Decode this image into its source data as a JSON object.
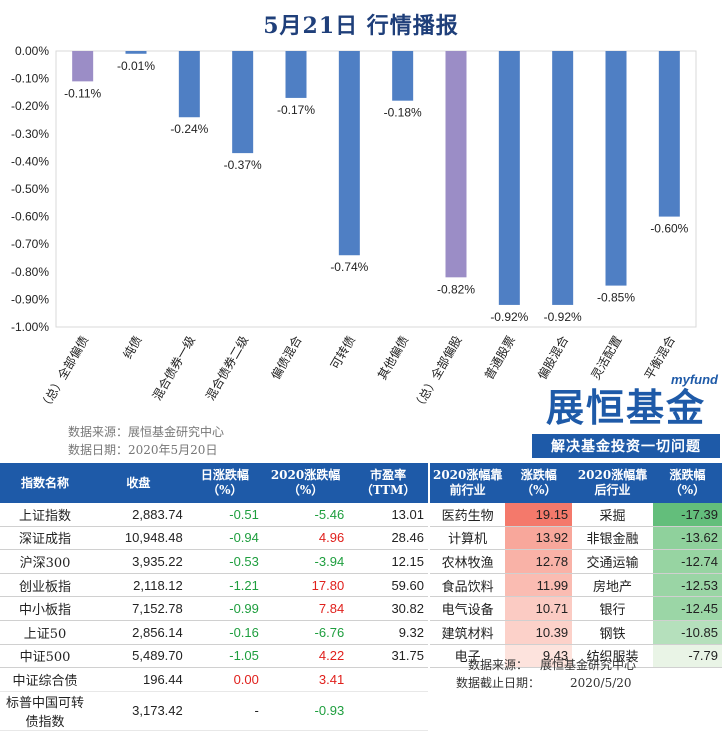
{
  "title": "5月21日  行情播报",
  "chart_data": {
    "type": "bar",
    "categories": [
      "（总）全部偏债",
      "纯债",
      "混合债券一级",
      "混合债券二级",
      "偏债混合",
      "可转债",
      "其他偏债",
      "（总）全部偏股",
      "普通股票",
      "偏股混合",
      "灵活配置",
      "平衡混合"
    ],
    "values": [
      -0.11,
      -0.01,
      -0.24,
      -0.37,
      -0.17,
      -0.74,
      -0.18,
      -0.82,
      -0.92,
      -0.92,
      -0.85,
      -0.6
    ],
    "value_labels": [
      "-0.11%",
      "-0.01%",
      "-0.24%",
      "-0.37%",
      "-0.17%",
      "-0.74%",
      "-0.18%",
      "-0.82%",
      "-0.92%",
      "-0.92%",
      "-0.85%",
      "-0.60%"
    ],
    "highlight": [
      0,
      7
    ],
    "yticks": [
      "0.00%",
      "-0.10%",
      "-0.20%",
      "-0.30%",
      "-0.40%",
      "-0.50%",
      "-0.60%",
      "-0.70%",
      "-0.80%",
      "-0.90%",
      "-1.00%"
    ],
    "ylim": [
      -1.0,
      0
    ],
    "colors": {
      "bar": "#4f7fc4",
      "highlight": "#9b8dc6"
    }
  },
  "source_lines": [
    "数据来源：展恒基金研究中心",
    "数据日期：2020年5月20日"
  ],
  "logo": {
    "small": "myfund",
    "main": "展恒基金",
    "slogan": "解决基金投资一切问题"
  },
  "index_table": {
    "headers": [
      "指数名称",
      "收盘",
      "日涨跌幅（%）",
      "2020涨跌幅（%）",
      "市盈率（TTM）"
    ],
    "rows": [
      {
        "name": "上证指数",
        "close": "2,883.74",
        "day": "-0.51",
        "ytd": "-5.46",
        "pe": "13.01"
      },
      {
        "name": "深证成指",
        "close": "10,948.48",
        "day": "-0.94",
        "ytd": "4.96",
        "pe": "28.46"
      },
      {
        "name": "沪深300",
        "close": "3,935.22",
        "day": "-0.53",
        "ytd": "-3.94",
        "pe": "12.15"
      },
      {
        "name": "创业板指",
        "close": "2,118.12",
        "day": "-1.21",
        "ytd": "17.80",
        "pe": "59.60"
      },
      {
        "name": "中小板指",
        "close": "7,152.78",
        "day": "-0.99",
        "ytd": "7.84",
        "pe": "30.82"
      },
      {
        "name": "上证50",
        "close": "2,856.14",
        "day": "-0.16",
        "ytd": "-6.76",
        "pe": "9.32"
      },
      {
        "name": "中证500",
        "close": "5,489.70",
        "day": "-1.05",
        "ytd": "4.22",
        "pe": "31.75"
      },
      {
        "name": "中证综合债",
        "close": "196.44",
        "day": "0.00",
        "ytd": "3.41",
        "pe": ""
      },
      {
        "name": "标普中国可转债指数",
        "close": "3,173.42",
        "day": "-",
        "ytd": "-0.93",
        "pe": ""
      }
    ]
  },
  "industry_table": {
    "headers": [
      "2020涨幅靠前行业",
      "涨跌幅（%）",
      "2020涨幅靠后行业",
      "涨跌幅（%）"
    ],
    "rows": [
      {
        "top": "医药生物",
        "top_v": "19.15",
        "top_c": "#f4796b",
        "bot": "采掘",
        "bot_v": "-17.39",
        "bot_c": "#63be7b"
      },
      {
        "top": "计算机",
        "top_v": "13.92",
        "top_c": "#f8a79b",
        "bot": "非银金融",
        "bot_v": "-13.62",
        "bot_c": "#8fd19c"
      },
      {
        "top": "农林牧渔",
        "top_v": "12.78",
        "top_c": "#f9b2a7",
        "bot": "交通运输",
        "bot_v": "-12.74",
        "bot_c": "#97d4a2"
      },
      {
        "top": "食品饮料",
        "top_v": "11.99",
        "top_c": "#fabcb2",
        "bot": "房地产",
        "bot_v": "-12.53",
        "bot_c": "#9ad5a5"
      },
      {
        "top": "电气设备",
        "top_v": "10.71",
        "top_c": "#fbcbc3",
        "bot": "银行",
        "bot_v": "-12.45",
        "bot_c": "#9bd6a6"
      },
      {
        "top": "建筑材料",
        "top_v": "10.39",
        "top_c": "#fcd1c9",
        "bot": "钢铁",
        "bot_v": "-10.85",
        "bot_c": "#b5e0bc"
      },
      {
        "top": "电子",
        "top_v": "9.43",
        "top_c": "#fde3dd",
        "bot": "纺织服装",
        "bot_v": "-7.79",
        "bot_c": "#e9f4e6"
      }
    ]
  },
  "footer": {
    "src_label": "数据来源：",
    "src_value": "展恒基金研究中心",
    "date_label": "数据截止日期：",
    "date_value": "2020/5/20"
  }
}
